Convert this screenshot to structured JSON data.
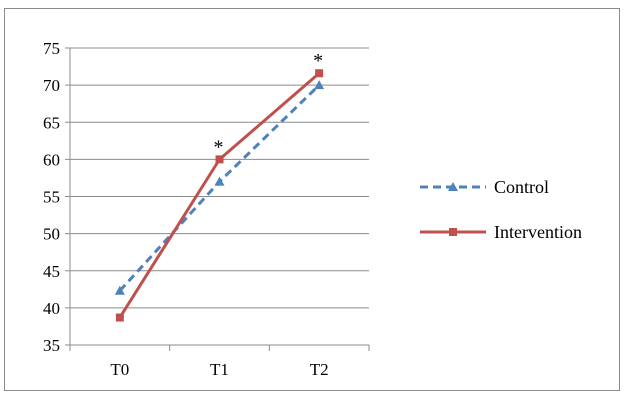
{
  "chart_data": {
    "type": "line",
    "categories": [
      "T0",
      "T1",
      "T2"
    ],
    "series": [
      {
        "name": "Control",
        "values": [
          42.3,
          57.0,
          70.0
        ],
        "color": "#4f81bd",
        "dash": true,
        "marker": "triangle"
      },
      {
        "name": "Intervention",
        "values": [
          38.7,
          60.0,
          71.6
        ],
        "color": "#c0504d",
        "dash": false,
        "marker": "square"
      }
    ],
    "ylim": [
      35,
      75
    ],
    "yticks": [
      35,
      40,
      45,
      50,
      55,
      60,
      65,
      70,
      75
    ],
    "grid": true,
    "legend": "right",
    "annotations": [
      {
        "text": "*",
        "category": "T1"
      },
      {
        "text": "*",
        "category": "T2"
      }
    ],
    "title": "",
    "xlabel": "",
    "ylabel": ""
  }
}
